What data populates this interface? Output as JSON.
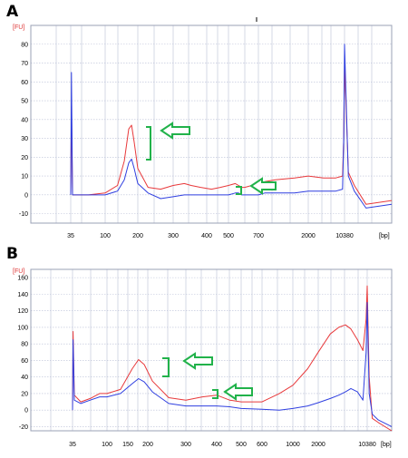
{
  "colors": {
    "red": "#e8393b",
    "blue": "#2f3fe0",
    "green": "#21b24a",
    "grid": "#b9bfd6",
    "frame": "#9aa0b5"
  },
  "chart_data": [
    {
      "type": "line",
      "panel_label": "A",
      "y_unit": "[FU]",
      "x_unit": "[bp]",
      "ylim": [
        -15,
        90
      ],
      "y_ticks": [
        -10,
        0,
        10,
        20,
        30,
        40,
        50,
        60,
        70,
        80
      ],
      "x_ticks": [
        "35",
        "100",
        "200",
        "300",
        "400",
        "500",
        "700",
        "2000",
        "10380"
      ],
      "grid": true,
      "series": [
        {
          "color": "red",
          "x": [
            35,
            35.8,
            37,
            60,
            100,
            130,
            150,
            165,
            175,
            185,
            200,
            225,
            260,
            300,
            330,
            350,
            380,
            420,
            460,
            500,
            540,
            560,
            580,
            600,
            650,
            700,
            800,
            1000,
            1500,
            2000,
            4000,
            7000,
            9500,
            10000,
            10380,
            10800,
            11500,
            13000,
            17000
          ],
          "y": [
            0,
            47,
            0,
            0,
            1,
            5,
            18,
            35,
            37,
            28,
            14,
            4,
            3,
            5,
            6,
            5,
            4,
            3,
            4,
            5,
            6,
            5,
            4,
            4,
            5,
            6,
            7,
            8,
            9,
            10,
            9,
            9,
            10,
            30,
            70,
            12,
            5,
            -5,
            -3
          ]
        },
        {
          "color": "blue",
          "x": [
            35,
            35.8,
            37,
            60,
            100,
            130,
            150,
            165,
            175,
            185,
            200,
            225,
            260,
            300,
            330,
            350,
            380,
            420,
            460,
            500,
            540,
            560,
            580,
            600,
            650,
            700,
            800,
            1000,
            1500,
            2000,
            4000,
            7000,
            9500,
            10000,
            10380,
            10800,
            11500,
            13000,
            17000
          ],
          "y": [
            0,
            65,
            0,
            0,
            0,
            2,
            8,
            17,
            19,
            14,
            6,
            1,
            -2,
            -1,
            0,
            0,
            0,
            0,
            0,
            0,
            1,
            1,
            0,
            0,
            0,
            0,
            1,
            1,
            1,
            2,
            2,
            2,
            3,
            30,
            80,
            10,
            2,
            -7,
            -5
          ]
        }
      ],
      "annotations": [
        "upper-arrow",
        "lower-arrow"
      ]
    },
    {
      "type": "line",
      "panel_label": "B",
      "y_unit": "[FU]",
      "x_unit": "[bp]",
      "ylim": [
        -25,
        170
      ],
      "y_ticks": [
        -20,
        0,
        20,
        40,
        60,
        80,
        100,
        120,
        140,
        160
      ],
      "x_ticks": [
        "35",
        "100",
        "150",
        "200",
        "300",
        "400",
        "500",
        "600",
        "1000",
        "2000",
        "10380"
      ],
      "grid": true,
      "series": [
        {
          "color": "red",
          "x": [
            35,
            35.6,
            37,
            45,
            60,
            80,
            100,
            130,
            160,
            175,
            190,
            210,
            250,
            300,
            350,
            400,
            450,
            500,
            600,
            800,
            1000,
            1500,
            2000,
            3000,
            4000,
            5000,
            6000,
            7500,
            9000,
            10000,
            10380,
            10800,
            11500,
            13000,
            17000
          ],
          "y": [
            0,
            95,
            18,
            10,
            14,
            20,
            20,
            25,
            50,
            61,
            55,
            35,
            15,
            12,
            16,
            18,
            12,
            10,
            10,
            20,
            30,
            50,
            70,
            92,
            100,
            103,
            98,
            85,
            72,
            110,
            150,
            40,
            -10,
            -15,
            -25
          ]
        },
        {
          "color": "blue",
          "x": [
            35,
            35.6,
            37,
            45,
            60,
            80,
            100,
            130,
            160,
            175,
            190,
            210,
            250,
            300,
            350,
            400,
            450,
            500,
            600,
            800,
            1000,
            1500,
            2000,
            3000,
            4000,
            5000,
            6000,
            7500,
            9000,
            10000,
            10380,
            10800,
            11500,
            13000,
            17000
          ],
          "y": [
            0,
            85,
            12,
            8,
            12,
            16,
            16,
            20,
            32,
            38,
            34,
            22,
            8,
            5,
            5,
            5,
            4,
            2,
            1,
            0,
            2,
            5,
            9,
            14,
            18,
            22,
            26,
            22,
            12,
            70,
            130,
            20,
            -5,
            -12,
            -20
          ]
        }
      ],
      "annotations": [
        "upper-arrow",
        "lower-arrow"
      ]
    }
  ]
}
